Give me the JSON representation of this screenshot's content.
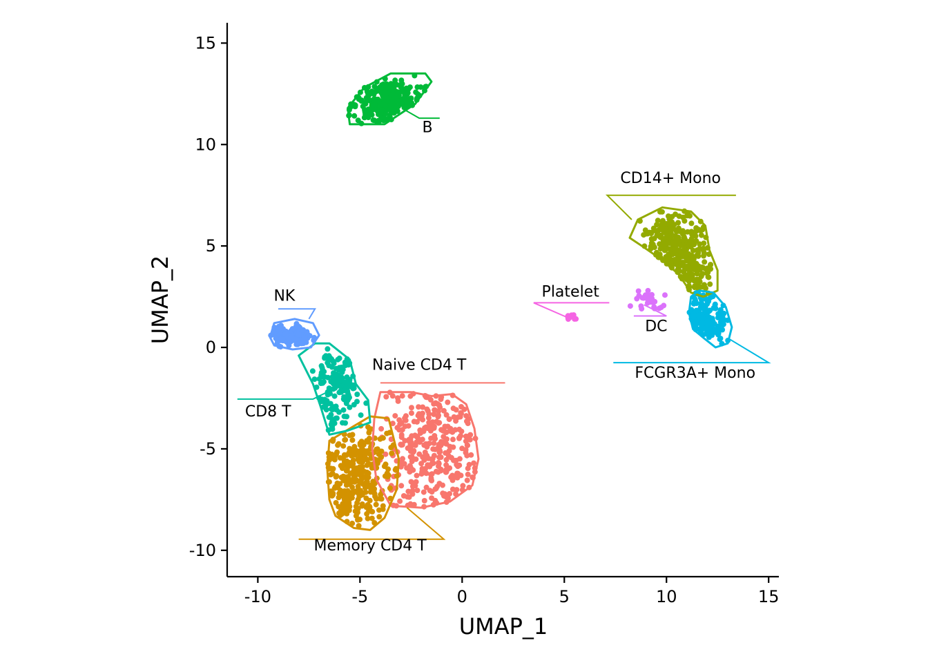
{
  "chart_data": {
    "type": "scatter",
    "title": "",
    "xlabel": "UMAP_1",
    "ylabel": "UMAP_2",
    "xlim": [
      -11.5,
      15.5
    ],
    "ylim": [
      -11.3,
      16.0
    ],
    "x_ticks": [
      -10,
      -5,
      0,
      5,
      10,
      15
    ],
    "y_ticks": [
      -10,
      -5,
      0,
      5,
      10,
      15
    ],
    "x_tick_labels": [
      "-10",
      "-5",
      "0",
      "5",
      "10",
      "15"
    ],
    "y_tick_labels": [
      "-10",
      "-5",
      "0",
      "5",
      "10",
      "15"
    ],
    "grid": false,
    "legend": "none",
    "series": [
      {
        "name": "Naive CD4 T",
        "color": "#F8766D",
        "center": [
          -1.2,
          -5.2
        ],
        "spread": [
          1.4,
          2.2
        ],
        "n": 340,
        "hull": [
          [
            -4.0,
            -2.2
          ],
          [
            -2.5,
            -2.2
          ],
          [
            -1.5,
            -2.4
          ],
          [
            -0.5,
            -2.3
          ],
          [
            0.2,
            -2.8
          ],
          [
            0.6,
            -4.0
          ],
          [
            0.8,
            -5.5
          ],
          [
            0.5,
            -6.8
          ],
          [
            -0.6,
            -7.6
          ],
          [
            -2.0,
            -7.9
          ],
          [
            -3.5,
            -7.8
          ],
          [
            -4.2,
            -6.5
          ],
          [
            -4.4,
            -5.0
          ],
          [
            -4.3,
            -3.5
          ],
          [
            -4.0,
            -2.2
          ]
        ],
        "label_pos": [
          -2.1,
          -1.1
        ],
        "line": [
          [
            -4.0,
            -1.75
          ],
          [
            2.1,
            -1.75
          ]
        ]
      },
      {
        "name": "Memory CD4 T",
        "color": "#D39200",
        "center": [
          -5.1,
          -6.4
        ],
        "spread": [
          1.1,
          1.3
        ],
        "n": 320,
        "hull": [
          [
            -6.5,
            -4.6
          ],
          [
            -5.5,
            -4.0
          ],
          [
            -4.5,
            -3.4
          ],
          [
            -3.6,
            -3.5
          ],
          [
            -3.1,
            -5.5
          ],
          [
            -3.2,
            -7.0
          ],
          [
            -3.8,
            -8.4
          ],
          [
            -4.5,
            -9.0
          ],
          [
            -5.3,
            -8.9
          ],
          [
            -6.2,
            -8.3
          ],
          [
            -6.5,
            -7.5
          ],
          [
            -6.6,
            -6.0
          ],
          [
            -6.5,
            -4.6
          ]
        ],
        "label_pos": [
          -4.5,
          -10.0
        ],
        "line": [
          [
            -8.0,
            -9.45
          ],
          [
            -0.9,
            -9.45
          ],
          [
            -2.7,
            -7.9
          ]
        ]
      },
      {
        "name": "CD14+ Mono",
        "color": "#93AA00",
        "center": [
          10.5,
          4.6
        ],
        "spread": [
          1.0,
          1.2
        ],
        "n": 330,
        "hull": [
          [
            8.2,
            5.4
          ],
          [
            8.6,
            6.3
          ],
          [
            9.8,
            6.9
          ],
          [
            11.2,
            6.7
          ],
          [
            11.9,
            6.0
          ],
          [
            12.1,
            4.8
          ],
          [
            12.5,
            3.8
          ],
          [
            12.5,
            2.8
          ],
          [
            11.8,
            2.5
          ],
          [
            11.2,
            2.7
          ],
          [
            10.6,
            3.6
          ],
          [
            9.8,
            4.3
          ],
          [
            8.8,
            5.0
          ],
          [
            8.2,
            5.4
          ]
        ],
        "label_pos": [
          10.2,
          8.1
        ],
        "line": [
          [
            13.4,
            7.5
          ],
          [
            7.1,
            7.5
          ],
          [
            8.3,
            6.3
          ]
        ]
      },
      {
        "name": "B",
        "color": "#00BA38",
        "center": [
          -3.6,
          12.1
        ],
        "spread": [
          1.0,
          0.6
        ],
        "n": 260,
        "hull": [
          [
            -5.5,
            11.0
          ],
          [
            -5.6,
            11.8
          ],
          [
            -4.8,
            12.8
          ],
          [
            -3.5,
            13.5
          ],
          [
            -1.8,
            13.5
          ],
          [
            -1.5,
            13.1
          ],
          [
            -2.3,
            12.0
          ],
          [
            -3.8,
            11.0
          ],
          [
            -5.5,
            11.0
          ]
        ],
        "label_pos": [
          -1.7,
          10.6
        ],
        "line": [
          [
            -2.8,
            11.7
          ],
          [
            -2.1,
            11.3
          ],
          [
            -1.1,
            11.3
          ]
        ]
      },
      {
        "name": "CD8 T",
        "color": "#00C19F",
        "center": [
          -6.1,
          -1.8
        ],
        "spread": [
          0.6,
          1.1
        ],
        "n": 150,
        "hull": [
          [
            -8.0,
            -0.4
          ],
          [
            -7.2,
            0.2
          ],
          [
            -6.5,
            0.2
          ],
          [
            -5.5,
            -0.6
          ],
          [
            -5.2,
            -1.8
          ],
          [
            -4.6,
            -2.6
          ],
          [
            -4.5,
            -3.7
          ],
          [
            -5.6,
            -4.1
          ],
          [
            -6.5,
            -4.3
          ],
          [
            -6.9,
            -3.0
          ],
          [
            -7.3,
            -1.8
          ],
          [
            -8.0,
            -0.4
          ]
        ],
        "label_pos": [
          -9.5,
          -3.4
        ],
        "line": [
          [
            -11.0,
            -2.55
          ],
          [
            -7.3,
            -2.55
          ],
          [
            -6.6,
            -2.2
          ]
        ]
      },
      {
        "name": "NK",
        "color": "#619CFF",
        "center": [
          -8.4,
          0.6
        ],
        "spread": [
          0.5,
          0.25
        ],
        "n": 150,
        "hull": [
          [
            -9.4,
            0.5
          ],
          [
            -9.2,
            1.2
          ],
          [
            -8.2,
            1.4
          ],
          [
            -7.3,
            1.2
          ],
          [
            -7.0,
            0.6
          ],
          [
            -7.4,
            0.0
          ],
          [
            -8.3,
            -0.1
          ],
          [
            -9.2,
            0.1
          ],
          [
            -9.4,
            0.5
          ]
        ],
        "label_pos": [
          -8.7,
          2.3
        ],
        "line": [
          [
            -9.0,
            1.9
          ],
          [
            -7.2,
            1.9
          ],
          [
            -7.5,
            1.4
          ]
        ]
      },
      {
        "name": "FCGR3A+ Mono",
        "color": "#00B9E3",
        "center": [
          11.8,
          1.4
        ],
        "spread": [
          0.6,
          0.7
        ],
        "n": 150,
        "hull": [
          [
            11.2,
            2.5
          ],
          [
            11.6,
            2.8
          ],
          [
            12.3,
            2.7
          ],
          [
            12.9,
            2.0
          ],
          [
            13.2,
            1.0
          ],
          [
            13.0,
            0.2
          ],
          [
            12.4,
            0.0
          ],
          [
            11.9,
            0.4
          ],
          [
            11.3,
            0.9
          ],
          [
            11.1,
            1.7
          ],
          [
            11.2,
            2.5
          ]
        ],
        "label_pos": [
          11.4,
          -1.5
        ],
        "line": [
          [
            7.4,
            -0.75
          ],
          [
            15.0,
            -0.75
          ],
          [
            13.1,
            0.4
          ]
        ]
      },
      {
        "name": "Platelet",
        "color": "#F564E3",
        "center": [
          5.3,
          1.45
        ],
        "spread": [
          0.15,
          0.1
        ],
        "n": 12,
        "hull": [],
        "label_pos": [
          5.3,
          2.5
        ],
        "line": [
          [
            7.2,
            2.2
          ],
          [
            3.5,
            2.2
          ],
          [
            5.1,
            1.5
          ]
        ]
      },
      {
        "name": "DC",
        "color": "#DB72FB",
        "center": [
          9.1,
          2.35
        ],
        "spread": [
          0.35,
          0.25
        ],
        "n": 30,
        "hull": [],
        "label_pos": [
          9.5,
          0.8
        ],
        "line": [
          [
            8.4,
            1.55
          ],
          [
            10.0,
            1.55
          ],
          [
            8.9,
            2.1
          ]
        ]
      }
    ]
  }
}
